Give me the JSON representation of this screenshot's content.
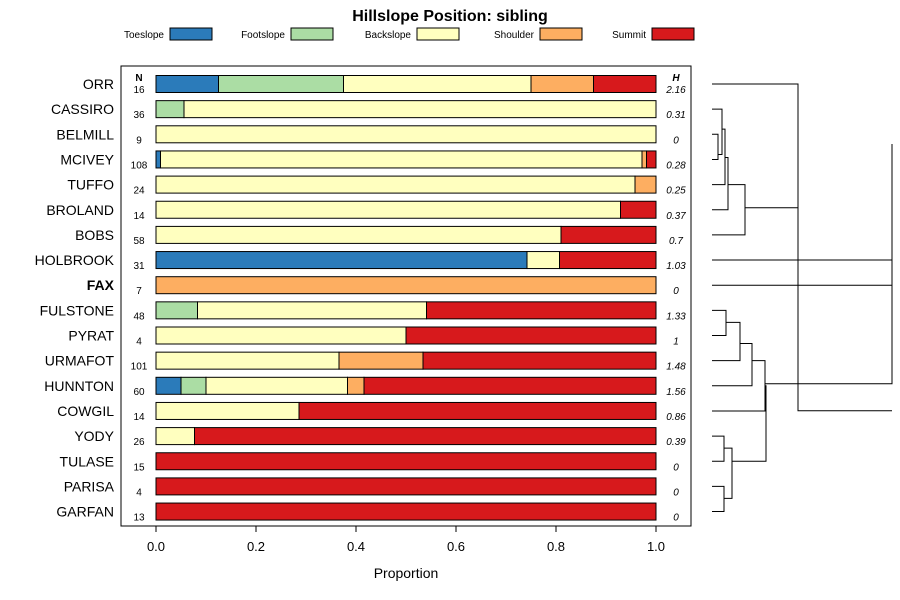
{
  "chart_data": {
    "type": "bar",
    "stacked": true,
    "orientation": "horizontal",
    "title": "Hillslope Position: sibling",
    "xlabel": "Proportion",
    "xlim": [
      0,
      1
    ],
    "xticks": [
      "0.0",
      "0.2",
      "0.4",
      "0.6",
      "0.8",
      "1.0"
    ],
    "n_header": "N",
    "h_header": "H",
    "legend_position": "top",
    "series": [
      {
        "name": "Toeslope",
        "color": "#2b7bba"
      },
      {
        "name": "Footslope",
        "color": "#abdda4"
      },
      {
        "name": "Backslope",
        "color": "#ffffbf"
      },
      {
        "name": "Shoulder",
        "color": "#fdae61"
      },
      {
        "name": "Summit",
        "color": "#d7191c"
      }
    ],
    "rows": [
      {
        "name": "ORR",
        "n": "16",
        "h": "2.16",
        "bold": false,
        "values": [
          0.125,
          0.25,
          0.375,
          0.125,
          0.125
        ]
      },
      {
        "name": "CASSIRO",
        "n": "36",
        "h": "0.31",
        "bold": false,
        "values": [
          0,
          0.056,
          0.944,
          0,
          0
        ]
      },
      {
        "name": "BELMILL",
        "n": "9",
        "h": "0",
        "bold": false,
        "values": [
          0,
          0,
          1.0,
          0,
          0
        ]
      },
      {
        "name": "MCIVEY",
        "n": "108",
        "h": "0.28",
        "bold": false,
        "values": [
          0.009,
          0,
          0.963,
          0.009,
          0.019
        ]
      },
      {
        "name": "TUFFO",
        "n": "24",
        "h": "0.25",
        "bold": false,
        "values": [
          0,
          0,
          0.958,
          0.042,
          0
        ]
      },
      {
        "name": "BROLAND",
        "n": "14",
        "h": "0.37",
        "bold": false,
        "values": [
          0,
          0,
          0.929,
          0,
          0.071
        ]
      },
      {
        "name": "BOBS",
        "n": "58",
        "h": "0.7",
        "bold": false,
        "values": [
          0,
          0,
          0.81,
          0,
          0.19
        ]
      },
      {
        "name": "HOLBROOK",
        "n": "31",
        "h": "1.03",
        "bold": false,
        "values": [
          0.742,
          0,
          0.065,
          0,
          0.193
        ]
      },
      {
        "name": "FAX",
        "n": "7",
        "h": "0",
        "bold": true,
        "values": [
          0,
          0,
          0,
          1.0,
          0
        ]
      },
      {
        "name": "FULSTONE",
        "n": "48",
        "h": "1.33",
        "bold": false,
        "values": [
          0,
          0.083,
          0.458,
          0,
          0.459
        ]
      },
      {
        "name": "PYRAT",
        "n": "4",
        "h": "1",
        "bold": false,
        "values": [
          0,
          0,
          0.5,
          0,
          0.5
        ]
      },
      {
        "name": "URMAFOT",
        "n": "101",
        "h": "1.48",
        "bold": false,
        "values": [
          0,
          0,
          0.366,
          0.168,
          0.466
        ]
      },
      {
        "name": "HUNNTON",
        "n": "60",
        "h": "1.56",
        "bold": false,
        "values": [
          0.05,
          0.05,
          0.283,
          0.033,
          0.584
        ]
      },
      {
        "name": "COWGIL",
        "n": "14",
        "h": "0.86",
        "bold": false,
        "values": [
          0,
          0,
          0.286,
          0,
          0.714
        ]
      },
      {
        "name": "YODY",
        "n": "26",
        "h": "0.39",
        "bold": false,
        "values": [
          0,
          0,
          0.077,
          0,
          0.923
        ]
      },
      {
        "name": "TULASE",
        "n": "15",
        "h": "0",
        "bold": false,
        "values": [
          0,
          0,
          0,
          0,
          1.0
        ]
      },
      {
        "name": "PARISA",
        "n": "4",
        "h": "0",
        "bold": false,
        "values": [
          0,
          0,
          0,
          0,
          1.0
        ]
      },
      {
        "name": "GARFAN",
        "n": "13",
        "h": "0",
        "bold": false,
        "values": [
          0,
          0,
          0,
          0,
          1.0
        ]
      }
    ]
  }
}
